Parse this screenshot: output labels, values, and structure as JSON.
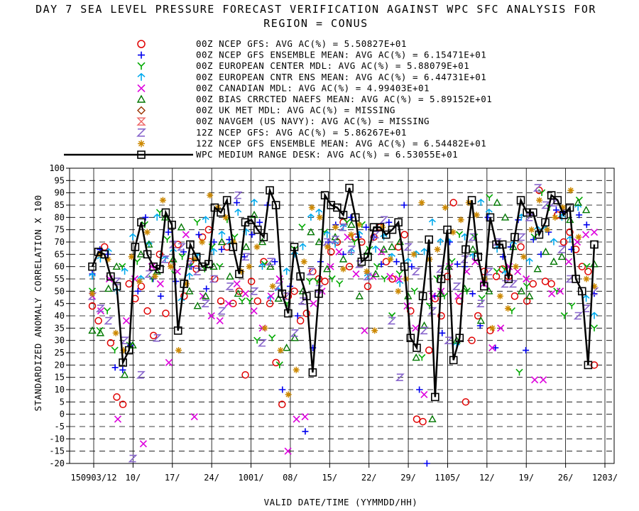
{
  "chart_data": {
    "type": "scatter",
    "title": "DAY 7 SEA LEVEL PRESSURE FORECAST VERIFICATION AGAINST WPC SFC ANALYSIS FOR",
    "subtitle": "REGION = CONUS",
    "xlabel": "VALID DATE/TIME (YYMMDD/HH)",
    "ylabel": "STANDARDIZED ANOMALY CORRELATION X 100",
    "ylim": [
      -20,
      100
    ],
    "yticks": [
      "100",
      "95",
      "90",
      "85",
      "80",
      "75",
      "70",
      "65",
      "60",
      "55",
      "50",
      "45",
      "40",
      "35",
      "30",
      "25",
      "20",
      "15",
      "10",
      "5",
      "0",
      "-5",
      "-10",
      "-15",
      "-20"
    ],
    "xticks": [
      "150903/12",
      "10/",
      "17/",
      "24/",
      "1001/",
      "08/",
      "15/",
      "22/",
      "29/",
      "1105/",
      "12/",
      "19/",
      "26/",
      "1203/"
    ],
    "grid": true,
    "legend_position": "top",
    "series": [
      {
        "name": "00Z NCEP GFS: AVG AC(%) =  5.50827E+01",
        "marker": "circle",
        "color": "#e00000",
        "values": [
          44,
          38,
          68,
          29,
          7,
          4,
          53,
          47,
          52,
          42,
          32,
          65,
          41,
          61,
          69,
          48,
          62,
          59,
          72,
          75,
          55,
          46,
          68,
          45,
          50,
          16,
          54,
          46,
          62,
          45,
          21,
          4,
          48,
          50,
          38,
          41,
          58,
          55,
          54,
          66,
          70,
          78,
          60,
          72,
          70,
          52,
          72,
          76,
          62,
          55,
          68,
          73,
          42,
          -2,
          -3,
          26,
          47,
          40,
          56,
          86,
          46,
          5,
          30,
          40,
          58,
          34,
          56,
          59,
          56,
          48,
          68,
          46,
          53,
          91,
          54,
          53,
          81,
          70,
          74,
          67,
          60,
          58,
          20
        ]
      },
      {
        "name": "00Z NCEP GFS ENSEMBLE MEAN: AVG AC(%) =  6.15471E+01",
        "marker": "plus",
        "color": "#0000ee",
        "values": [
          57,
          67,
          65,
          19,
          18,
          28,
          50,
          80,
          55,
          48,
          74,
          54,
          66,
          60,
          73,
          51,
          70,
          67,
          71,
          86,
          64,
          73,
          78,
          85,
          62,
          10,
          52,
          40,
          -7,
          27,
          62,
          70,
          77,
          65,
          80,
          72,
          76,
          72,
          61,
          78,
          62,
          85,
          60,
          10,
          -20,
          48,
          33,
          70,
          61,
          60,
          49,
          36,
          80,
          27,
          64,
          68,
          79,
          26,
          71,
          65,
          74,
          83,
          82,
          67,
          81,
          77,
          49
        ]
      },
      {
        "name": "00Z EUROPEAN CENTER MDL: AVG AC(%) =  5.88079E+01",
        "marker": "Y",
        "color": "#00aa00",
        "values": [
          50,
          34,
          42,
          26,
          60,
          28,
          62,
          77,
          55,
          82,
          71,
          57,
          64,
          60,
          78,
          59,
          68,
          60,
          79,
          72,
          46,
          46,
          30,
          61,
          31,
          20,
          45,
          67,
          76,
          54,
          54,
          74,
          55,
          53,
          78,
          70,
          77,
          67,
          60,
          55,
          40,
          57,
          44,
          50,
          23,
          44,
          55,
          48,
          62,
          73,
          50,
          72,
          47,
          88,
          58,
          59,
          42,
          17,
          52,
          72,
          90,
          84,
          50,
          40,
          44,
          87,
          60,
          35
        ]
      },
      {
        "name": "00Z EUROPEAN CNTR ENS MEAN: AVG AC(%) =  6.44731E+01",
        "marker": "arrow",
        "color": "#00aaee",
        "values": [
          56,
          63,
          66,
          50,
          58,
          72,
          55,
          69,
          80,
          63,
          66,
          46,
          56,
          64,
          79,
          66,
          73,
          69,
          82,
          74,
          86,
          60,
          47,
          50,
          58,
          65,
          68,
          80,
          82,
          73,
          69,
          76,
          66,
          73,
          56,
          67,
          72,
          64,
          53,
          62,
          65,
          66,
          78,
          70,
          70,
          28,
          72,
          64,
          86,
          82,
          67,
          57,
          69,
          80,
          62,
          75,
          75,
          70,
          80,
          71,
          84,
          47,
          40
        ]
      },
      {
        "name": "00Z CANADIAN MDL: AVG AC(%) =  4.99403E+01",
        "marker": "x",
        "color": "#dd00dd",
        "values": [
          48,
          42,
          55,
          -2,
          38,
          55,
          -12,
          60,
          53,
          21,
          58,
          73,
          -1,
          48,
          40,
          38,
          45,
          53,
          49,
          42,
          35,
          48,
          55,
          -15,
          -2,
          -1,
          45,
          50,
          60,
          66,
          72,
          57,
          34,
          56,
          66,
          56,
          55,
          44,
          35,
          8,
          48,
          50,
          60,
          48,
          58,
          62,
          53,
          27,
          35,
          60,
          58,
          55,
          14,
          14,
          49,
          50,
          62,
          70,
          73,
          74
        ]
      },
      {
        "name": "00Z BIAS CRRCTED NAEFS MEAN: AVG AC(%) =  5.89152E+01",
        "marker": "triangle",
        "color": "#007700",
        "values": [
          34,
          33,
          51,
          60,
          16,
          28,
          65,
          69,
          58,
          80,
          63,
          76,
          50,
          44,
          48,
          60,
          70,
          56,
          49,
          68,
          81,
          70,
          60,
          47,
          27,
          31,
          50,
          74,
          70,
          59,
          72,
          63,
          77,
          48,
          66,
          57,
          67,
          68,
          70,
          48,
          23,
          36,
          -2,
          49,
          60,
          30,
          51,
          67,
          38,
          50,
          86,
          80,
          68,
          50,
          48,
          59,
          66,
          62,
          64,
          79,
          86,
          83,
          61
        ]
      },
      {
        "name": "00Z UK MET MDL: AVG AC(%) = MISSING",
        "marker": "diamond",
        "color": "#993300",
        "values": []
      },
      {
        "name": "00Z NAVGEM (US NAVY): AVG AC(%) = MISSING",
        "marker": "hourglass",
        "color": "#ee6666",
        "values": []
      },
      {
        "name": "12Z NCEP GFS: AVG AC(%) =  5.86267E+01",
        "marker": "Z",
        "color": "#8866cc",
        "values": [
          48,
          43,
          38,
          54,
          30,
          -18,
          16,
          57,
          31,
          63,
          69,
          68,
          61,
          58,
          45,
          55,
          42,
          52,
          89,
          64,
          50,
          29,
          62,
          52,
          48,
          33,
          46,
          58,
          51,
          70,
          71,
          76,
          67,
          61,
          56,
          73,
          79,
          38,
          15,
          68,
          58,
          34,
          42,
          59,
          30,
          52,
          63,
          72,
          45,
          58,
          70,
          53,
          53,
          72,
          80,
          92,
          85,
          86,
          67,
          55,
          40,
          43,
          50
        ]
      },
      {
        "name": "12Z NCEP GFS ENSEMBLE MEAN: AVG AC(%) =  6.54482E+01",
        "marker": "asterisk",
        "color": "#cc8800",
        "values": [
          49,
          65,
          63,
          33,
          26,
          64,
          54,
          74,
          56,
          87,
          60,
          26,
          53,
          63,
          70,
          89,
          84,
          80,
          70,
          58,
          60,
          68,
          35,
          52,
          26,
          8,
          18,
          62,
          84,
          80,
          68,
          76,
          59,
          73,
          77,
          58,
          34,
          76,
          63,
          50,
          55,
          65,
          86,
          63,
          67,
          84,
          74,
          79,
          86,
          81,
          55,
          35,
          48,
          43,
          60,
          64,
          75,
          87,
          75,
          80,
          84,
          91,
          72,
          55,
          52
        ]
      },
      {
        "name": "WPC MEDIUM RANGE DESK: AVG AC(%) =  6.53055E+01",
        "marker": "square",
        "color": "#000000",
        "line": true,
        "values": [
          60,
          66,
          65,
          56,
          52,
          21,
          26,
          68,
          78,
          65,
          60,
          59,
          82,
          77,
          34,
          53,
          69,
          64,
          60,
          61,
          84,
          82,
          87,
          68,
          57,
          78,
          79,
          75,
          72,
          91,
          85,
          49,
          41,
          68,
          56,
          48,
          17,
          49,
          89,
          85,
          84,
          81,
          92,
          80,
          62,
          64,
          76,
          76,
          73,
          75,
          78,
          60,
          31,
          27,
          48,
          71,
          7,
          55,
          75,
          22,
          31,
          67,
          87,
          64,
          52,
          80,
          69,
          69,
          55,
          72,
          87,
          82,
          82,
          73,
          78,
          89,
          87,
          81,
          84,
          55,
          50,
          20,
          69
        ]
      }
    ]
  }
}
